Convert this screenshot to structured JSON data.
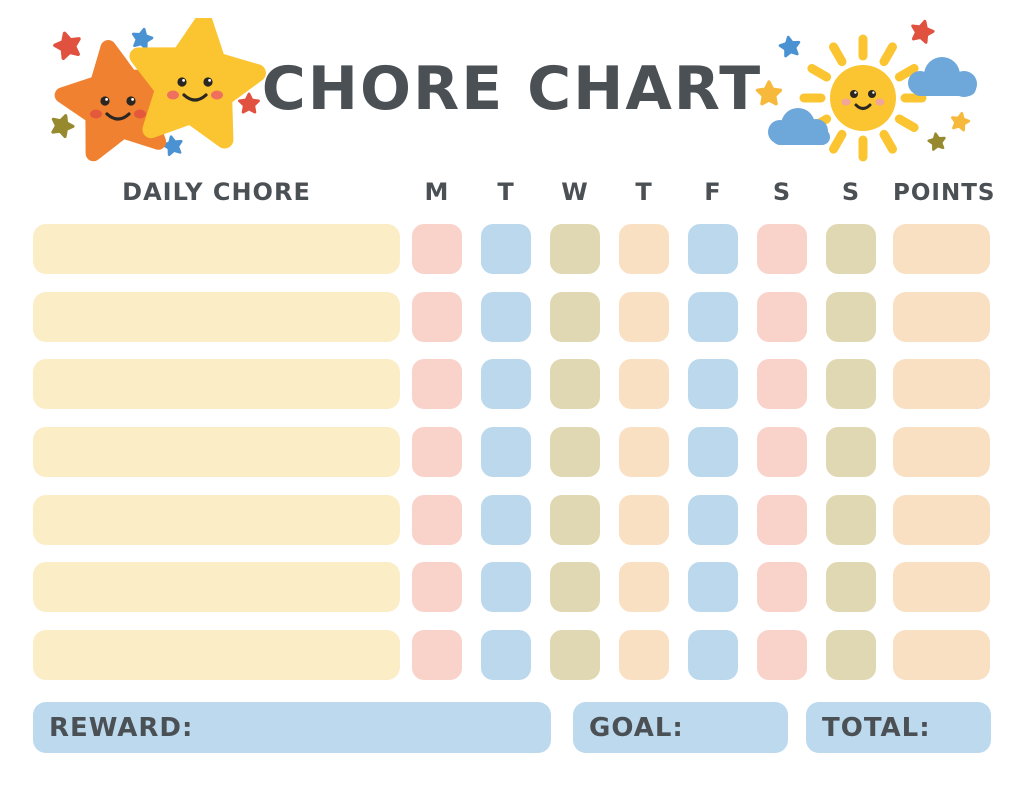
{
  "title": "CHORE CHART",
  "header": {
    "daily_chore": "DAILY CHORE",
    "days": [
      "M",
      "T",
      "W",
      "T",
      "F",
      "S",
      "S"
    ],
    "points": "POINTS"
  },
  "table": {
    "row_count": 7,
    "chore_cell_color": "cream",
    "day_cell_colors": [
      "pink",
      "blue",
      "olive",
      "peach",
      "blue",
      "pink",
      "olive"
    ],
    "points_cell_color": "peach",
    "rows": [
      {
        "chore": "",
        "days": [
          "",
          "",
          "",
          "",
          "",
          "",
          ""
        ],
        "points": ""
      },
      {
        "chore": "",
        "days": [
          "",
          "",
          "",
          "",
          "",
          "",
          ""
        ],
        "points": ""
      },
      {
        "chore": "",
        "days": [
          "",
          "",
          "",
          "",
          "",
          "",
          ""
        ],
        "points": ""
      },
      {
        "chore": "",
        "days": [
          "",
          "",
          "",
          "",
          "",
          "",
          ""
        ],
        "points": ""
      },
      {
        "chore": "",
        "days": [
          "",
          "",
          "",
          "",
          "",
          "",
          ""
        ],
        "points": ""
      },
      {
        "chore": "",
        "days": [
          "",
          "",
          "",
          "",
          "",
          "",
          ""
        ],
        "points": ""
      },
      {
        "chore": "",
        "days": [
          "",
          "",
          "",
          "",
          "",
          "",
          ""
        ],
        "points": ""
      }
    ]
  },
  "footer": {
    "reward": "REWARD:",
    "goal": "GOAL:",
    "total": "TOTAL:"
  },
  "colors": {
    "ink": "#4B5055",
    "cream": "#FBEDC5",
    "pink": "#F9D2CA",
    "blue": "#BBD8ED",
    "olive": "#DFD8B2",
    "peach": "#FAE0C3",
    "footer_blue": "#BCD9EE",
    "star_orange": "#F08130",
    "star_yellow": "#FBC431",
    "cloud_blue": "#6EA7DA",
    "mini_star_red": "#E0523F",
    "mini_star_blue": "#4B92D3",
    "mini_star_olive": "#97892E",
    "mini_star_yellow": "#F6B93B"
  },
  "decorations": {
    "left": "two-smiling-stars-icon",
    "right": "smiling-sun-with-clouds-icon"
  }
}
